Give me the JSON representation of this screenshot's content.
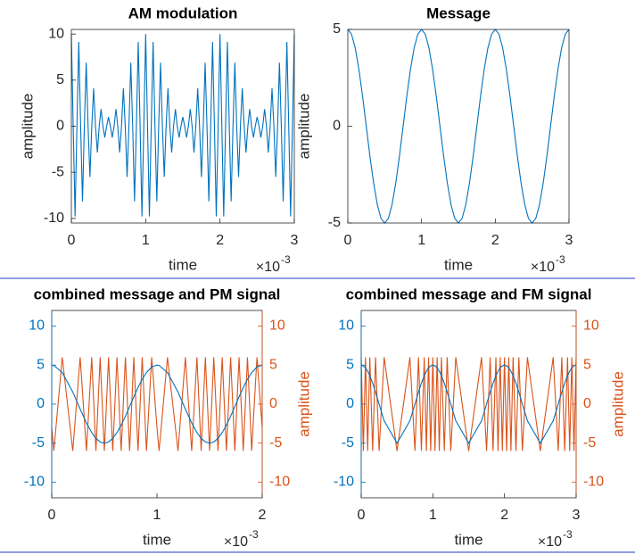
{
  "chart_data": [
    {
      "type": "line",
      "title": "AM modulation",
      "xlabel": "time",
      "ylabel": "amplitude",
      "x_multiplier": "×10",
      "x_exponent": "-3",
      "xlim": [
        0,
        3
      ],
      "xticks": [
        0,
        1,
        2,
        3
      ],
      "ylim": [
        -10.5,
        10.5
      ],
      "yticks": [
        -10,
        -5,
        0,
        5,
        10
      ],
      "x": [
        0,
        0.025,
        0.05,
        0.075,
        0.1,
        0.125,
        0.15,
        0.175,
        0.2,
        0.225,
        0.25,
        0.275,
        0.3,
        0.325,
        0.35,
        0.375,
        0.4,
        0.425,
        0.45,
        0.475,
        0.5,
        0.525,
        0.55,
        0.575,
        0.6,
        0.625,
        0.65,
        0.675,
        0.7,
        0.725,
        0.75,
        0.775,
        0.8,
        0.825,
        0.85,
        0.875,
        0.9,
        0.925,
        0.95,
        0.975,
        1,
        1.025,
        1.05,
        1.075,
        1.1,
        1.125,
        1.15,
        1.175,
        1.2,
        1.225,
        1.25,
        1.275,
        1.3,
        1.325,
        1.35,
        1.375,
        1.4,
        1.425,
        1.45,
        1.475,
        1.5,
        1.525,
        1.55,
        1.575,
        1.6,
        1.625,
        1.65,
        1.675,
        1.7,
        1.725,
        1.75,
        1.775,
        1.8,
        1.825,
        1.85,
        1.875,
        1.9,
        1.925,
        1.95,
        1.975,
        2,
        2.025,
        2.05,
        2.075,
        2.1,
        2.125,
        2.15,
        2.175,
        2.2,
        2.225,
        2.25,
        2.275,
        2.3,
        2.325,
        2.35,
        2.375,
        2.4,
        2.425,
        2.45,
        2.475,
        2.5,
        2.525,
        2.55,
        2.575,
        2.6,
        2.625,
        2.65,
        2.675,
        2.7,
        2.725,
        2.75,
        2.775,
        2.8,
        2.825,
        2.85,
        2.875,
        2.9,
        2.925,
        2.95,
        2.975,
        3
      ],
      "series": [
        {
          "color": "#0072BD",
          "values": [
            10,
            0,
            -9.78,
            0,
            9.14,
            0,
            -8.15,
            0,
            6.89,
            0,
            -5.5,
            0,
            4.11,
            0,
            -2.85,
            0,
            1.86,
            0,
            -1.22,
            0,
            1,
            0,
            -1.22,
            0,
            1.86,
            0,
            -2.85,
            0,
            4.11,
            0,
            -5.5,
            0,
            6.89,
            0,
            -8.15,
            0,
            9.14,
            0,
            -9.78,
            0,
            10,
            0,
            -9.78,
            0,
            9.14,
            0,
            -8.15,
            0,
            6.89,
            0,
            -5.5,
            0,
            4.11,
            0,
            -2.85,
            0,
            1.86,
            0,
            -1.22,
            0,
            1,
            0,
            -1.22,
            0,
            1.86,
            0,
            -2.85,
            0,
            4.11,
            0,
            -5.5,
            0,
            6.89,
            0,
            -8.15,
            0,
            9.14,
            0,
            -9.78,
            0,
            10,
            0,
            -9.78,
            0,
            9.14,
            0,
            -8.15,
            0,
            6.89,
            0,
            -5.5,
            0,
            4.11,
            0,
            -2.85,
            0,
            1.86,
            0,
            -1.22,
            0,
            1,
            0,
            -1.22,
            0,
            1.86,
            0,
            -2.85,
            0,
            4.11,
            0,
            -5.5,
            0,
            6.89,
            0,
            -8.15,
            0,
            9.14,
            0,
            -9.78,
            0,
            10
          ]
        }
      ]
    },
    {
      "type": "line",
      "title": "Message",
      "xlabel": "time",
      "ylabel": "amplitude",
      "x_multiplier": "×10",
      "x_exponent": "-3",
      "xlim": [
        0,
        3
      ],
      "xticks": [
        0,
        1,
        2,
        3
      ],
      "ylim": [
        -5,
        5
      ],
      "yticks": [
        -5,
        0,
        5
      ],
      "x": [
        0,
        0.05,
        0.1,
        0.15,
        0.2,
        0.25,
        0.3,
        0.35,
        0.4,
        0.45,
        0.5,
        0.55,
        0.6,
        0.65,
        0.7,
        0.75,
        0.8,
        0.85,
        0.9,
        0.95,
        1,
        1.05,
        1.1,
        1.15,
        1.2,
        1.25,
        1.3,
        1.35,
        1.4,
        1.45,
        1.5,
        1.55,
        1.6,
        1.65,
        1.7,
        1.75,
        1.8,
        1.85,
        1.9,
        1.95,
        2,
        2.05,
        2.1,
        2.15,
        2.2,
        2.25,
        2.3,
        2.35,
        2.4,
        2.45,
        2.5,
        2.55,
        2.6,
        2.65,
        2.7,
        2.75,
        2.8,
        2.85,
        2.9,
        2.95,
        3
      ],
      "series": [
        {
          "color": "#0072BD",
          "values": [
            5,
            4.76,
            4.05,
            2.94,
            1.55,
            0,
            -1.55,
            -2.94,
            -4.05,
            -4.76,
            -5,
            -4.76,
            -4.05,
            -2.94,
            -1.55,
            0,
            1.55,
            2.94,
            4.05,
            4.76,
            5,
            4.76,
            4.05,
            2.94,
            1.55,
            0,
            -1.55,
            -2.94,
            -4.05,
            -4.76,
            -5,
            -4.76,
            -4.05,
            -2.94,
            -1.55,
            0,
            1.55,
            2.94,
            4.05,
            4.76,
            5,
            4.76,
            4.05,
            2.94,
            1.55,
            0,
            -1.55,
            -2.94,
            -4.05,
            -4.76,
            -5,
            -4.76,
            -4.05,
            -2.94,
            -1.55,
            0,
            1.55,
            2.94,
            4.05,
            4.76,
            5
          ]
        }
      ]
    },
    {
      "type": "line",
      "title": "combined message and PM signal",
      "xlabel": "time",
      "y2label": "amplitude",
      "x_multiplier": "×10",
      "x_exponent": "-3",
      "xlim": [
        0,
        2
      ],
      "xticks": [
        0,
        1,
        2
      ],
      "ylim": [
        -12,
        12
      ],
      "yticks": [
        -10,
        -5,
        0,
        5,
        10
      ],
      "y2lim": [
        -12,
        12
      ],
      "y2ticks": [
        -10,
        -5,
        0,
        5,
        10
      ],
      "x": [
        0,
        0.02,
        0.1,
        0.2,
        0.27,
        0.33,
        0.38,
        0.42,
        0.46,
        0.5,
        0.54,
        0.58,
        0.62,
        0.66,
        0.7,
        0.74,
        0.78,
        0.82,
        0.86,
        0.9,
        0.95,
        1,
        1.02,
        1.1,
        1.2,
        1.27,
        1.33,
        1.38,
        1.42,
        1.46,
        1.5,
        1.54,
        1.58,
        1.62,
        1.66,
        1.7,
        1.74,
        1.78,
        1.82,
        1.86,
        1.9,
        1.95,
        2
      ],
      "series": [
        {
          "color": "#D95319",
          "axis": "y2",
          "values": [
            -3,
            -6,
            6,
            -6,
            6,
            -6,
            6,
            -6,
            6,
            -6,
            6,
            -6,
            6,
            -6,
            6,
            -6,
            6,
            -6,
            6,
            -6,
            6,
            -3,
            -6,
            6,
            -6,
            6,
            -6,
            6,
            -6,
            6,
            -6,
            6,
            -6,
            6,
            -6,
            6,
            -6,
            6,
            -6,
            6,
            -6,
            6,
            -3
          ]
        },
        {
          "color": "#0072BD",
          "values": [
            5,
            4.96,
            4.05,
            1.55,
            -0.63,
            -2.41,
            -3.64,
            -4.38,
            -4.84,
            -5,
            -4.84,
            -4.38,
            -3.64,
            -2.68,
            -1.55,
            -0.31,
            0.94,
            2.13,
            3.19,
            4.05,
            4.76,
            5,
            4.96,
            4.05,
            1.55,
            -0.63,
            -2.41,
            -3.64,
            -4.38,
            -4.84,
            -5,
            -4.84,
            -4.38,
            -3.64,
            -2.68,
            -1.55,
            -0.31,
            0.94,
            2.13,
            3.19,
            4.05,
            4.76,
            5
          ]
        }
      ]
    },
    {
      "type": "line",
      "title": "combined message and FM signal",
      "xlabel": "time",
      "y2label": "amplitude",
      "x_multiplier": "×10",
      "x_exponent": "-3",
      "xlim": [
        0,
        3
      ],
      "xticks": [
        0,
        1,
        2,
        3
      ],
      "ylim": [
        -12,
        12
      ],
      "yticks": [
        -10,
        -5,
        0,
        5,
        10
      ],
      "y2lim": [
        -12,
        12
      ],
      "y2ticks": [
        -10,
        -5,
        0,
        5,
        10
      ],
      "x": [
        0,
        0.03,
        0.06,
        0.09,
        0.12,
        0.16,
        0.2,
        0.25,
        0.32,
        0.5,
        0.68,
        0.75,
        0.8,
        0.84,
        0.88,
        0.91,
        0.94,
        0.97,
        1,
        1.03,
        1.06,
        1.09,
        1.12,
        1.16,
        1.2,
        1.25,
        1.32,
        1.5,
        1.68,
        1.75,
        1.8,
        1.84,
        1.88,
        1.91,
        1.94,
        1.97,
        2,
        2.03,
        2.06,
        2.09,
        2.12,
        2.16,
        2.2,
        2.25,
        2.32,
        2.5,
        2.68,
        2.75,
        2.8,
        2.84,
        2.88,
        2.91,
        2.94,
        2.97,
        3
      ],
      "series": [
        {
          "color": "#D95319",
          "axis": "y2",
          "values": [
            6,
            -6,
            6,
            -6,
            6,
            -6,
            6,
            -6,
            6,
            -6,
            6,
            -6,
            6,
            -6,
            6,
            -6,
            6,
            -6,
            6,
            -6,
            6,
            -6,
            6,
            -6,
            6,
            -6,
            6,
            -6,
            6,
            -6,
            6,
            -6,
            6,
            -6,
            6,
            -6,
            6,
            -6,
            6,
            -6,
            6,
            -6,
            6,
            -6,
            6,
            -6,
            6,
            -6,
            6,
            -6,
            6,
            -6,
            6,
            -6,
            6
          ]
        },
        {
          "color": "#0072BD",
          "values": [
            5,
            4.91,
            4.65,
            4.22,
            3.64,
            2.68,
            1.55,
            0,
            -2.13,
            -5,
            -2.13,
            0,
            1.55,
            2.68,
            3.64,
            4.22,
            4.65,
            4.91,
            5,
            4.91,
            4.65,
            4.22,
            3.64,
            2.68,
            1.55,
            0,
            -2.13,
            -5,
            -2.13,
            0,
            1.55,
            2.68,
            3.64,
            4.22,
            4.65,
            4.91,
            5,
            4.91,
            4.65,
            4.22,
            3.64,
            2.68,
            1.55,
            0,
            -2.13,
            -5,
            -2.13,
            0,
            1.55,
            2.68,
            3.64,
            4.22,
            4.65,
            4.91,
            5
          ]
        }
      ]
    }
  ]
}
